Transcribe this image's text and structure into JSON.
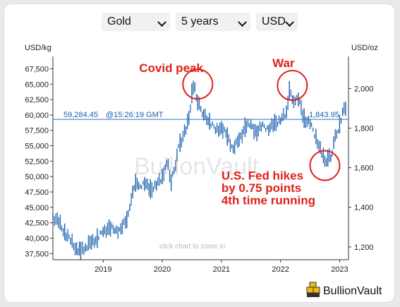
{
  "controls": {
    "metal": "Gold",
    "period": "5 years",
    "currency": "USD"
  },
  "brand": {
    "name": "BullionVault",
    "watermark": "BullionVault"
  },
  "colors": {
    "line": "#1a5fae",
    "price_line": "#2b6fc4",
    "annotation": "#e0201b",
    "axis": "#333333"
  },
  "chart_data": {
    "type": "line",
    "style": "candlestick-like daily range",
    "y_left_label": "USD/kg",
    "y_right_label": "USD/oz",
    "y_left_ticks": [
      "37,500",
      "40,000",
      "42,500",
      "45,000",
      "47,500",
      "50,000",
      "52,500",
      "55,000",
      "57,500",
      "60,000",
      "62,500",
      "65,000",
      "67,500"
    ],
    "y_left_tick_values": [
      37500,
      40000,
      42500,
      45000,
      47500,
      50000,
      52500,
      55000,
      57500,
      60000,
      62500,
      65000,
      67500
    ],
    "y_right_ticks": [
      "1,200",
      "1,400",
      "1,600",
      "1,800",
      "2,000"
    ],
    "y_right_tick_values": [
      1200,
      1400,
      1600,
      1800,
      2000
    ],
    "ylim_usd_kg": [
      36500,
      69500
    ],
    "x_ticks": [
      "2019",
      "2020",
      "2021",
      "2022",
      "2023"
    ],
    "x_tick_values": [
      2019,
      2020,
      2021,
      2022,
      2023
    ],
    "xlim": [
      2018.15,
      2023.15
    ],
    "current_price_kg": "59,284.45",
    "current_time": "@15:26:19 GMT",
    "current_price_oz": "1,843.95",
    "current_price_kg_value": 59284.45,
    "zoom_hint": "click chart to zoom in",
    "annotations": [
      {
        "text": "Covid peak",
        "x": 2020.15,
        "y": 67000
      },
      {
        "text": "War",
        "x": 2022.05,
        "y": 67800
      },
      {
        "text": "U.S. Fed hikes",
        "x": 2021.0,
        "y": 49500
      },
      {
        "text": "by 0.75 points",
        "x": 2021.0,
        "y": 47500
      },
      {
        "text": "4th time running",
        "x": 2021.0,
        "y": 45500
      }
    ],
    "circles": [
      {
        "x": 2020.6,
        "y": 65000
      },
      {
        "x": 2022.2,
        "y": 64800
      },
      {
        "x": 2022.75,
        "y": 51800
      }
    ],
    "series": [
      {
        "x": [
          2018.15,
          2018.25,
          2018.35,
          2018.45,
          2018.55,
          2018.62,
          2018.7,
          2018.8,
          2018.9,
          2019.0,
          2019.1,
          2019.2,
          2019.3,
          2019.4,
          2019.45,
          2019.5,
          2019.55,
          2019.6,
          2019.7,
          2019.8,
          2019.9,
          2020.0,
          2020.05,
          2020.1,
          2020.15,
          2020.2,
          2020.25,
          2020.3,
          2020.4,
          2020.45,
          2020.5,
          2020.55,
          2020.6,
          2020.65,
          2020.7,
          2020.8,
          2020.9,
          2021.0,
          2021.1,
          2021.2,
          2021.3,
          2021.4,
          2021.5,
          2021.6,
          2021.7,
          2021.8,
          2021.9,
          2022.0,
          2022.1,
          2022.15,
          2022.2,
          2022.3,
          2022.4,
          2022.5,
          2022.6,
          2022.7,
          2022.75,
          2022.8,
          2022.85,
          2022.9,
          2023.0,
          2023.05,
          2023.1
        ],
        "y": [
          43500,
          42500,
          41000,
          39500,
          38300,
          37900,
          38500,
          39300,
          40000,
          41000,
          41800,
          41200,
          41500,
          43000,
          45000,
          47500,
          49000,
          48500,
          48800,
          48000,
          48500,
          50000,
          51500,
          52000,
          49000,
          51000,
          53500,
          55500,
          57500,
          59500,
          63500,
          64500,
          62000,
          61000,
          60000,
          59000,
          57500,
          58000,
          56500,
          54500,
          56000,
          58000,
          58500,
          57000,
          58500,
          57500,
          58800,
          59000,
          60500,
          64000,
          62500,
          62500,
          59500,
          58500,
          56500,
          53500,
          52500,
          53000,
          53000,
          55500,
          58500,
          60500,
          61000
        ]
      }
    ]
  }
}
